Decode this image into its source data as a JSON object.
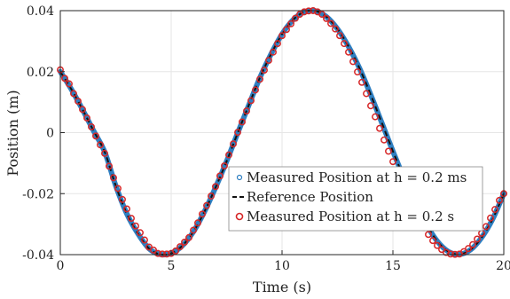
{
  "chart_data": {
    "type": "line",
    "title": "",
    "xlabel": "Time (s)",
    "ylabel": "Position (m)",
    "xlim": [
      0,
      20
    ],
    "ylim": [
      -0.04,
      0.04
    ],
    "x_ticks": [
      0,
      5,
      10,
      15,
      20
    ],
    "x_tick_labels": [
      "0",
      "5",
      "10",
      "15",
      "20"
    ],
    "y_ticks": [
      0.04,
      0.02,
      0,
      -0.02,
      -0.04
    ],
    "y_tick_labels": [
      "0.04",
      "0.02",
      "0",
      "-0.02",
      "-0.04"
    ],
    "grid": true,
    "legend_position": "center-right",
    "series": [
      {
        "name": "Measured Position at h = 0.2 ms",
        "style": "dense-dots",
        "color": "#2f7fc1",
        "x": [
          0,
          0.5,
          1,
          1.5,
          2,
          2.5,
          3,
          3.5,
          4,
          4.5,
          5,
          5.5,
          6,
          6.5,
          7,
          7.5,
          8,
          8.5,
          9,
          9.5,
          10,
          10.5,
          11,
          11.5,
          12,
          12.5,
          13,
          13.5,
          14,
          14.5,
          15,
          15.5,
          16,
          16.5,
          17,
          17.5,
          18,
          18.5,
          19,
          19.5,
          20
        ],
        "y": [
          0.02,
          0.0142,
          0.0076,
          0.0006,
          -0.0063,
          -0.0174,
          -0.0266,
          -0.0331,
          -0.038,
          -0.0399,
          -0.0396,
          -0.0371,
          -0.0325,
          -0.0259,
          -0.018,
          -0.0094,
          -0.0001,
          0.009,
          0.018,
          0.0257,
          0.0323,
          0.037,
          0.0396,
          0.0399,
          0.038,
          0.034,
          0.0282,
          0.021,
          0.0124,
          0.0032,
          -0.0061,
          -0.0149,
          -0.023,
          -0.03,
          -0.0356,
          -0.039,
          -0.0399,
          -0.0384,
          -0.0344,
          -0.0283,
          -0.02
        ]
      },
      {
        "name": "Reference Position",
        "style": "dashed",
        "color": "#111111",
        "x": [
          0,
          0.5,
          1,
          1.5,
          2,
          2.5,
          3,
          3.5,
          4,
          4.5,
          5,
          5.5,
          6,
          6.5,
          7,
          7.5,
          8,
          8.5,
          9,
          9.5,
          10,
          10.5,
          11,
          11.5,
          12,
          12.5,
          13,
          13.5,
          14,
          14.5,
          15,
          15.5,
          16,
          16.5,
          17,
          17.5,
          18,
          18.5,
          19,
          19.5,
          20
        ],
        "y": [
          0.02,
          0.0142,
          0.0076,
          0.0006,
          -0.0063,
          -0.0174,
          -0.0266,
          -0.0331,
          -0.038,
          -0.0399,
          -0.0396,
          -0.0371,
          -0.0325,
          -0.0259,
          -0.018,
          -0.0094,
          -0.0001,
          0.009,
          0.018,
          0.0257,
          0.0323,
          0.037,
          0.0396,
          0.0399,
          0.038,
          0.034,
          0.0282,
          0.021,
          0.0124,
          0.0032,
          -0.0061,
          -0.0149,
          -0.023,
          -0.03,
          -0.0356,
          -0.039,
          -0.0399,
          -0.0384,
          -0.0344,
          -0.0283,
          -0.02
        ]
      },
      {
        "name": "Measured Position at h = 0.2 s",
        "style": "circle-markers",
        "color": "#d62728",
        "x": [
          0,
          0.2,
          0.4,
          0.6,
          0.8,
          1,
          1.2,
          1.4,
          1.6,
          1.8,
          2,
          2.2,
          2.4,
          2.6,
          2.8,
          3,
          3.2,
          3.4,
          3.6,
          3.8,
          4,
          4.2,
          4.4,
          4.6,
          4.8,
          5,
          5.2,
          5.4,
          5.6,
          5.8,
          6,
          6.2,
          6.4,
          6.6,
          6.8,
          7,
          7.2,
          7.4,
          7.6,
          7.8,
          8,
          8.2,
          8.4,
          8.6,
          8.8,
          9,
          9.2,
          9.4,
          9.6,
          9.8,
          10,
          10.2,
          10.4,
          10.6,
          10.8,
          11,
          11.2,
          11.4,
          11.6,
          11.8,
          12,
          12.2,
          12.4,
          12.6,
          12.8,
          13,
          13.2,
          13.4,
          13.6,
          13.8,
          14,
          14.2,
          14.4,
          14.6,
          14.8,
          15,
          15.2,
          15.4,
          15.6,
          15.8,
          16,
          16.2,
          16.4,
          16.6,
          16.8,
          17,
          17.2,
          17.4,
          17.6,
          17.8,
          18,
          18.2,
          18.4,
          18.6,
          18.8,
          19,
          19.2,
          19.4,
          19.6,
          19.8,
          20
        ],
        "y": [
          0.0206,
          0.0178,
          0.016,
          0.0128,
          0.0103,
          0.0076,
          0.0048,
          0.0019,
          -0.0011,
          -0.004,
          -0.0068,
          -0.011,
          -0.0148,
          -0.0183,
          -0.0219,
          -0.025,
          -0.0281,
          -0.0306,
          -0.0328,
          -0.0352,
          -0.0375,
          -0.0385,
          -0.0396,
          -0.0398,
          -0.0398,
          -0.0396,
          -0.0388,
          -0.0374,
          -0.0359,
          -0.0344,
          -0.032,
          -0.0296,
          -0.0267,
          -0.0239,
          -0.0208,
          -0.0177,
          -0.0142,
          -0.0109,
          -0.0073,
          -0.0037,
          0.0001,
          0.0035,
          0.0071,
          0.0105,
          0.014,
          0.0175,
          0.0205,
          0.0237,
          0.0264,
          0.0292,
          0.0318,
          0.0338,
          0.0357,
          0.0375,
          0.0388,
          0.0396,
          0.0399,
          0.04,
          0.0396,
          0.0388,
          0.0374,
          0.0358,
          0.034,
          0.0318,
          0.0292,
          0.0264,
          0.0233,
          0.0199,
          0.0165,
          0.0128,
          0.0088,
          0.0052,
          0.0014,
          -0.0024,
          -0.0061,
          -0.0095,
          -0.0131,
          -0.0166,
          -0.0199,
          -0.023,
          -0.0259,
          -0.0285,
          -0.0311,
          -0.0334,
          -0.0354,
          -0.037,
          -0.0383,
          -0.0393,
          -0.0398,
          -0.0399,
          -0.0398,
          -0.039,
          -0.038,
          -0.0367,
          -0.0349,
          -0.033,
          -0.0308,
          -0.028,
          -0.0252,
          -0.0222,
          -0.02
        ]
      }
    ]
  }
}
